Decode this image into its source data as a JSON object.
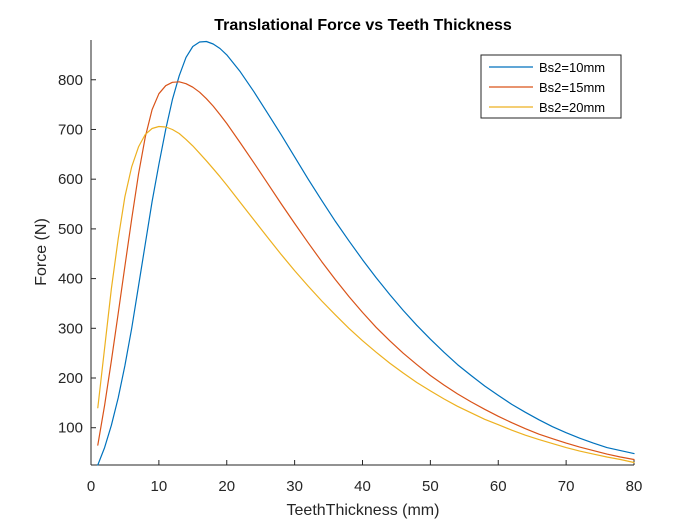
{
  "chart_data": {
    "type": "line",
    "title": "Translational Force vs Teeth Thickness",
    "xlabel": "TeethThickness (mm)",
    "ylabel": "Force (N)",
    "xlim": [
      0,
      80
    ],
    "ylim": [
      25,
      880
    ],
    "xticks": [
      0,
      10,
      20,
      30,
      40,
      50,
      60,
      70,
      80
    ],
    "yticks": [
      100,
      200,
      300,
      400,
      500,
      600,
      700,
      800
    ],
    "grid": false,
    "legend_position": "top-right",
    "series": [
      {
        "name": "Bs2=10mm",
        "color": "#0072BD",
        "x": [
          1,
          2,
          3,
          4,
          5,
          6,
          7,
          8,
          9,
          10,
          11,
          12,
          13,
          14,
          15,
          16,
          17,
          18,
          19,
          20,
          22,
          24,
          26,
          28,
          30,
          32,
          34,
          36,
          38,
          40,
          42,
          44,
          46,
          48,
          50,
          52,
          54,
          56,
          58,
          60,
          62,
          64,
          66,
          68,
          70,
          72,
          74,
          76,
          78,
          80
        ],
        "y": [
          25,
          60,
          105,
          160,
          225,
          300,
          385,
          470,
          555,
          630,
          700,
          760,
          808,
          845,
          867,
          876,
          877,
          872,
          863,
          850,
          816,
          776,
          733,
          690,
          645,
          600,
          557,
          515,
          476,
          438,
          402,
          368,
          336,
          306,
          278,
          252,
          227,
          205,
          184,
          165,
          147,
          131,
          116,
          102,
          90,
          79,
          69,
          60,
          54,
          48
        ]
      },
      {
        "name": "Bs2=15mm",
        "color": "#D95319",
        "x": [
          1,
          2,
          3,
          4,
          5,
          6,
          7,
          8,
          9,
          10,
          11,
          12,
          13,
          14,
          15,
          16,
          17,
          18,
          19,
          20,
          22,
          24,
          26,
          28,
          30,
          32,
          34,
          36,
          38,
          40,
          42,
          44,
          46,
          48,
          50,
          52,
          54,
          56,
          58,
          60,
          62,
          64,
          66,
          68,
          70,
          72,
          74,
          76,
          78,
          80
        ],
        "y": [
          65,
          145,
          235,
          330,
          425,
          520,
          610,
          685,
          740,
          772,
          788,
          795,
          796,
          792,
          785,
          775,
          762,
          747,
          730,
          712,
          673,
          633,
          592,
          551,
          511,
          472,
          434,
          398,
          364,
          332,
          302,
          275,
          250,
          227,
          205,
          186,
          168,
          152,
          137,
          123,
          110,
          98,
          87,
          78,
          69,
          61,
          54,
          47,
          41,
          36
        ]
      },
      {
        "name": "Bs2=20mm",
        "color": "#EDB120",
        "x": [
          1,
          2,
          3,
          4,
          5,
          6,
          7,
          8,
          9,
          10,
          11,
          12,
          13,
          14,
          15,
          16,
          17,
          18,
          19,
          20,
          22,
          24,
          26,
          28,
          30,
          32,
          34,
          36,
          38,
          40,
          42,
          44,
          46,
          48,
          50,
          52,
          54,
          56,
          58,
          60,
          62,
          64,
          66,
          68,
          70,
          72,
          74,
          76,
          78,
          80
        ],
        "y": [
          140,
          260,
          380,
          480,
          565,
          625,
          665,
          690,
          702,
          706,
          705,
          700,
          692,
          680,
          667,
          652,
          637,
          621,
          605,
          588,
          553,
          518,
          483,
          449,
          416,
          385,
          355,
          327,
          300,
          275,
          252,
          230,
          210,
          191,
          174,
          158,
          143,
          130,
          117,
          106,
          95,
          85,
          76,
          68,
          60,
          53,
          47,
          41,
          36,
          30
        ]
      }
    ]
  }
}
